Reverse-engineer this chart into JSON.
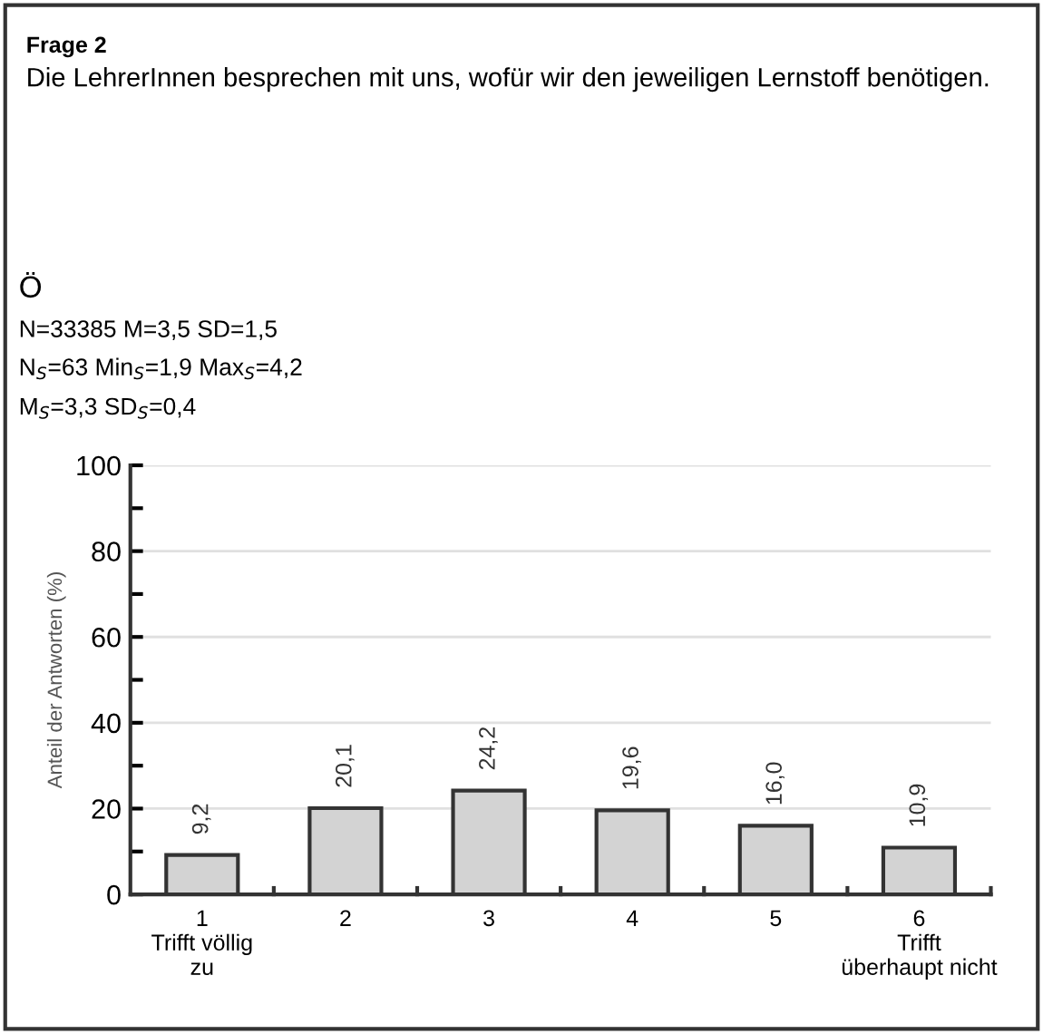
{
  "chart_data": {
    "type": "bar",
    "title": "Frage 2",
    "subtitle": "Die LehrerInnen besprechen mit uns, wofür wir den jeweiligen Lernstoff benötigen.",
    "annotations": [
      "Ö",
      "N=33385 M=3,5 SD=1,5",
      "N$_{S}$=63 Min$_{S}$=1,9 Max$_{S}$=4,2",
      "M$_{S}$=3,3 SD$_{S}$=0,4"
    ],
    "ylabel": "Anteil der Antworten (%)",
    "categories": [
      "1\nTrifft völlig\nzu",
      "2",
      "3",
      "4",
      "5",
      "6\nTrifft\nüberhaupt nicht"
    ],
    "values": [
      9.2,
      20.1,
      24.2,
      19.6,
      16.0,
      10.9
    ],
    "value_labels": [
      "9,2",
      "20,1",
      "24,2",
      "19,6",
      "16,0",
      "10,9"
    ],
    "color": "#d3d3d3",
    "ylim": [
      0,
      100
    ],
    "yticks": [
      0,
      {
        "value": 10,
        "label": null
      },
      20,
      {
        "value": 30,
        "label": null
      },
      40,
      {
        "value": 50,
        "label": null
      },
      60,
      {
        "value": 70,
        "label": null
      },
      80,
      {
        "value": 90,
        "label": null
      },
      100
    ],
    "grid": "y",
    "legend": false
  }
}
